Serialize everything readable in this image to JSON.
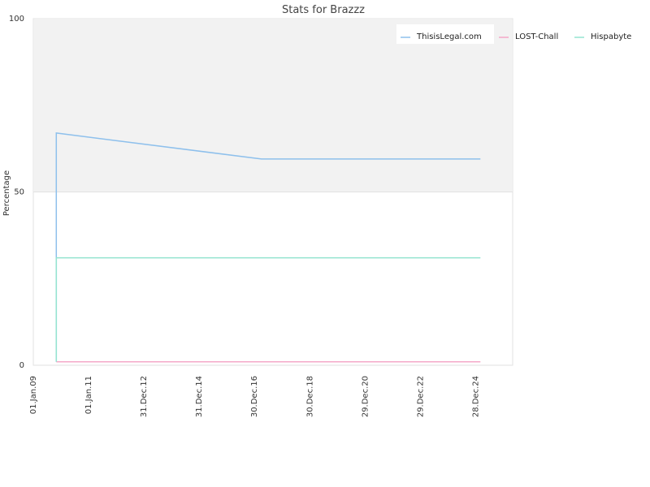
{
  "chart_data": {
    "type": "line",
    "title": "Stats for Brazzz",
    "xlabel": "",
    "ylabel": "Percentage",
    "ylim": [
      0,
      100
    ],
    "yticks": [
      "0",
      "50",
      "100"
    ],
    "xlim": [
      "2009-01-01",
      "2026-05-01"
    ],
    "xticks": [
      {
        "date": "2009-01-01",
        "label": "01.Jan.09"
      },
      {
        "date": "2011-01-01",
        "label": "01.Jan.11"
      },
      {
        "date": "2012-12-31",
        "label": "31.Dec.12"
      },
      {
        "date": "2014-12-31",
        "label": "31.Dec.14"
      },
      {
        "date": "2016-12-30",
        "label": "30.Dec.16"
      },
      {
        "date": "2018-12-30",
        "label": "30.Dec.18"
      },
      {
        "date": "2020-12-29",
        "label": "29.Dec.20"
      },
      {
        "date": "2022-12-29",
        "label": "29.Dec.22"
      },
      {
        "date": "2024-12-28",
        "label": "28.Dec.24"
      }
    ],
    "grid": true,
    "shaded_band": [
      50,
      100
    ],
    "legend_position": "top-right",
    "series": [
      {
        "name": "ThisisLegal.com",
        "color": "#8ec0ec",
        "points": [
          [
            "2009-11-01",
            1
          ],
          [
            "2009-11-01",
            67
          ],
          [
            "2017-04-01",
            59.5
          ],
          [
            "2025-03-01",
            59.5
          ]
        ]
      },
      {
        "name": "LOST-Chall",
        "color": "#f4a8c8",
        "points": [
          [
            "2009-11-01",
            1
          ],
          [
            "2025-03-01",
            1
          ]
        ]
      },
      {
        "name": "Hispabyte",
        "color": "#94e4d0",
        "points": [
          [
            "2009-11-01",
            1
          ],
          [
            "2009-11-01",
            31
          ],
          [
            "2025-03-01",
            31
          ]
        ]
      }
    ]
  }
}
